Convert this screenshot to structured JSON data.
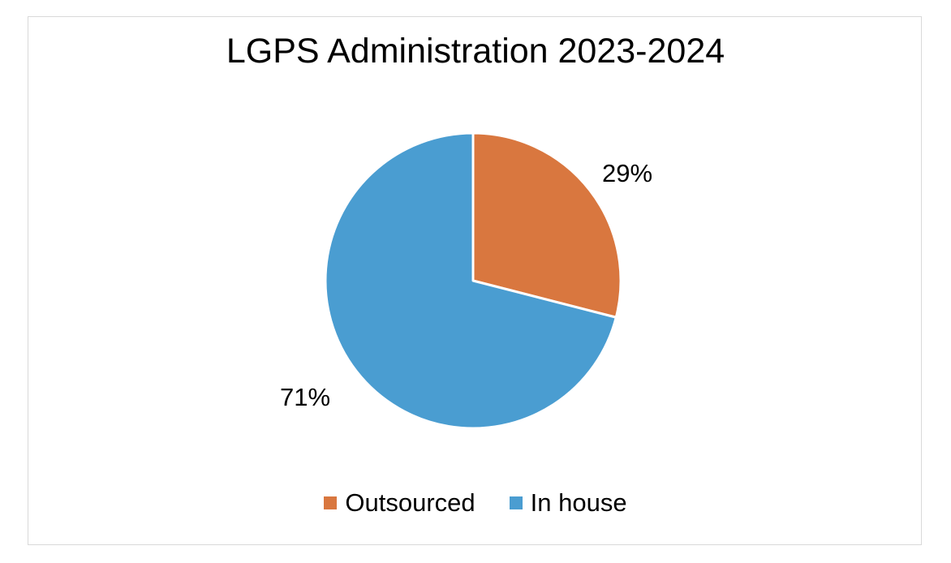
{
  "chart_data": {
    "type": "pie",
    "title": "LGPS Administration 2023-2024",
    "series": [
      {
        "name": "Outsourced",
        "value": 29,
        "label": "29%",
        "color": "#d9773f"
      },
      {
        "name": "In house",
        "value": 71,
        "label": "71%",
        "color": "#4a9dd1"
      }
    ],
    "legend": {
      "placement": "bottom",
      "entries": [
        "Outsourced",
        "In house"
      ]
    }
  }
}
